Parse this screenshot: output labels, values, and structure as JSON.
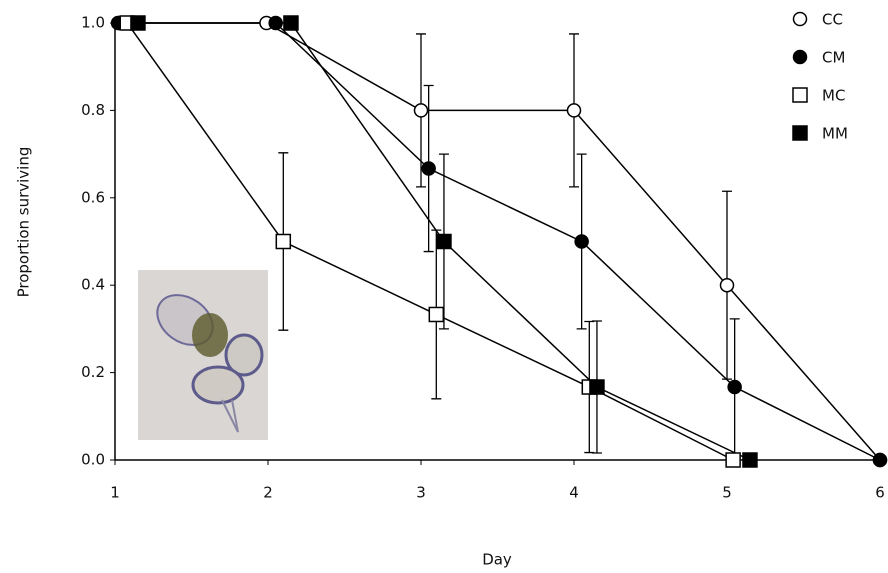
{
  "chart_data": {
    "type": "line",
    "x_label": "Day",
    "y_label": "Proportion surviving",
    "xlim": [
      1,
      6
    ],
    "ylim": [
      0,
      1
    ],
    "xticks": [
      1,
      2,
      3,
      4,
      5,
      6
    ],
    "yticks": [
      {
        "value": 0,
        "label": "0.0"
      },
      {
        "value": 0.2,
        "label": "0.2"
      },
      {
        "value": 0.4,
        "label": "0.4"
      },
      {
        "value": 0.6,
        "label": "0.6"
      },
      {
        "value": 0.8,
        "label": "0.8"
      },
      {
        "value": 1,
        "label": "1.0"
      }
    ],
    "legend": "upper right",
    "series": [
      {
        "name": "CC",
        "color": "#000000",
        "marker": "circle-open",
        "x": [
          1.03,
          1.99,
          3.0,
          4.0,
          5.0,
          6.0
        ],
        "values": [
          1,
          1,
          0.8,
          0.8,
          0.4,
          0
        ],
        "errors": [
          null,
          null,
          0.175,
          0.175,
          0.215,
          null
        ]
      },
      {
        "name": "CM",
        "color": "#000000",
        "marker": "circle-filled",
        "x": [
          1.02,
          2.05,
          3.05,
          4.05,
          5.05,
          6.0
        ],
        "values": [
          1,
          1,
          0.667,
          0.5,
          0.167,
          0
        ],
        "errors": [
          null,
          null,
          0.19,
          0.2,
          0.156,
          null
        ]
      },
      {
        "name": "MC",
        "color": "#000000",
        "marker": "square-open",
        "x": [
          1.08,
          2.1,
          3.1,
          4.1,
          5.04
        ],
        "values": [
          1,
          0.5,
          0.333,
          0.167,
          0
        ],
        "errors": [
          null,
          0.203,
          0.193,
          0.15,
          null
        ]
      },
      {
        "name": "MM",
        "color": "#000000",
        "marker": "square-filled",
        "x": [
          1.15,
          2.15,
          3.15,
          4.15,
          5.15
        ],
        "values": [
          1,
          1,
          0.5,
          0.167,
          0
        ],
        "errors": [
          null,
          null,
          0.2,
          0.151,
          null
        ]
      }
    ]
  }
}
